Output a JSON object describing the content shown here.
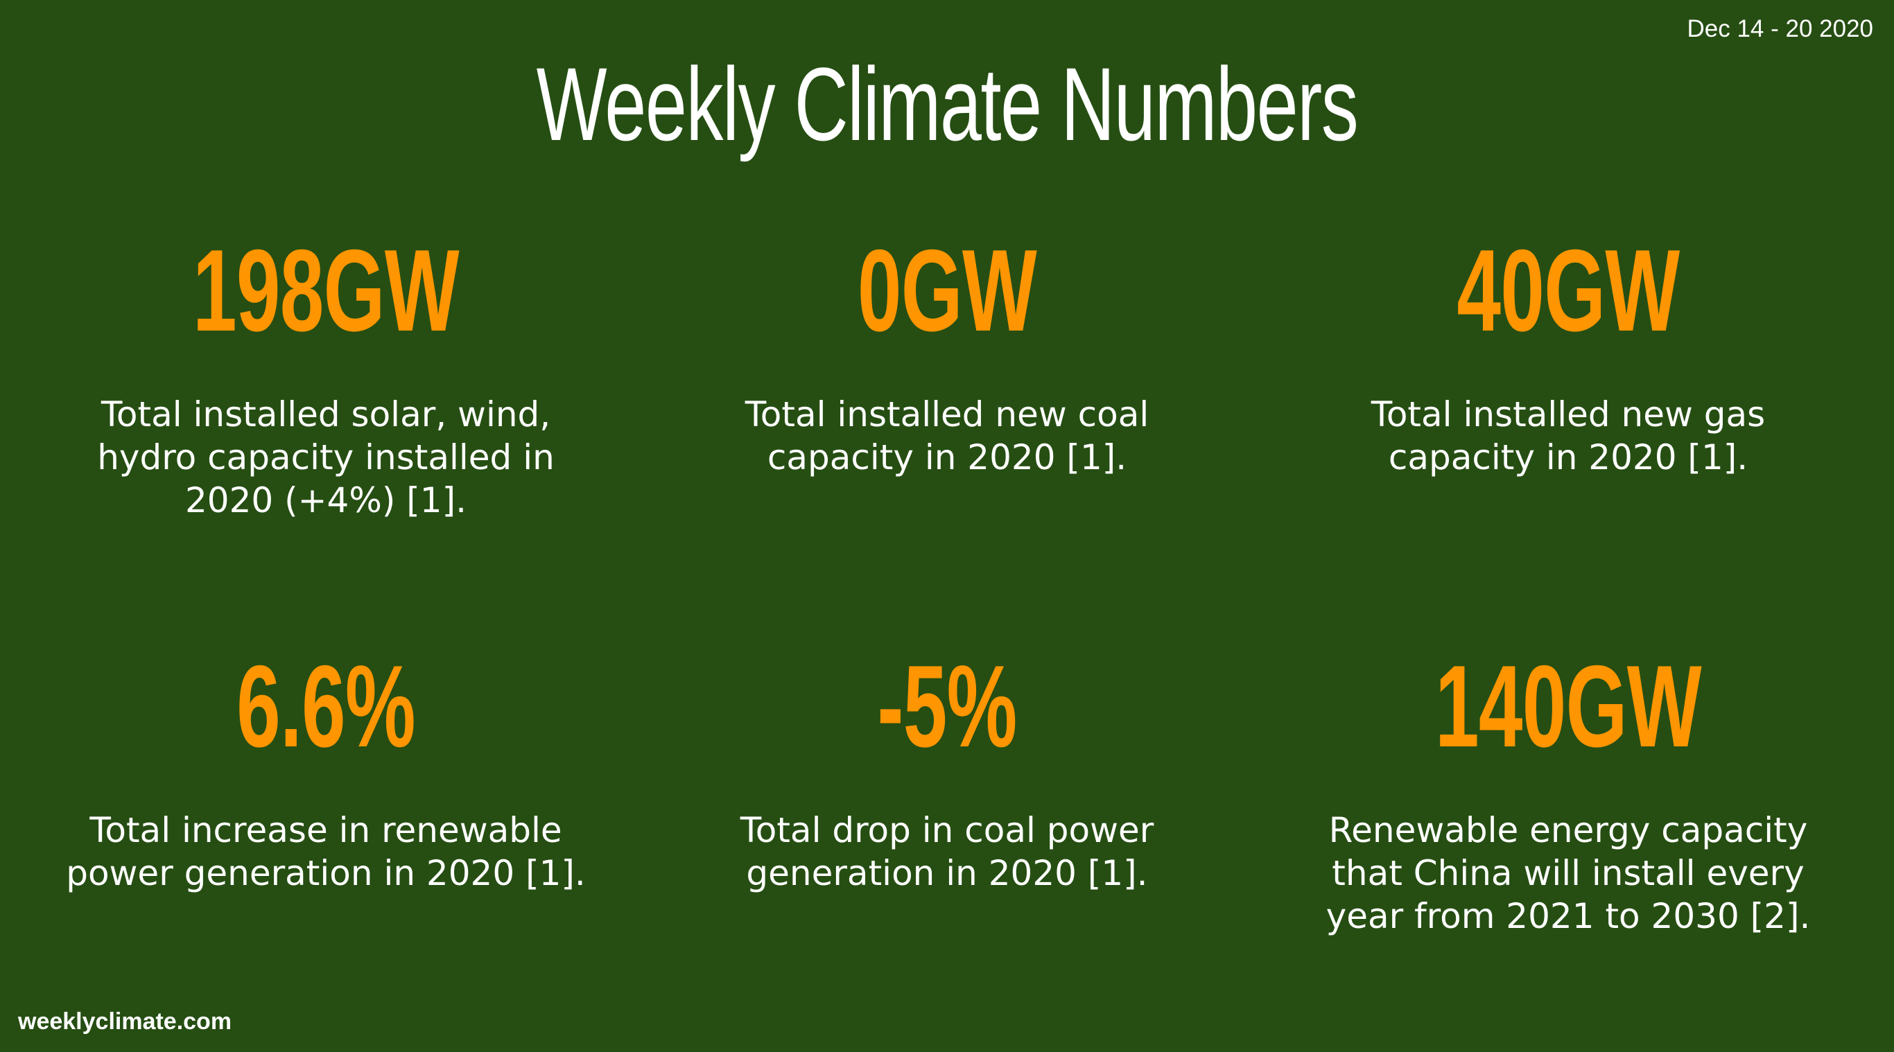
{
  "header": {
    "date_range": "Dec 14 - 20 2020",
    "title": "Weekly Climate Numbers"
  },
  "stats": [
    {
      "value": "198GW",
      "lines": [
        "Total installed solar, wind,",
        "hydro capacity installed in",
        "2020 (+4%) [1]."
      ]
    },
    {
      "value": "0GW",
      "lines": [
        "Total installed new coal",
        "capacity in 2020 [1]."
      ]
    },
    {
      "value": "40GW",
      "lines": [
        "Total installed new gas",
        "capacity in 2020 [1]."
      ]
    },
    {
      "value": "6.6%",
      "lines": [
        "Total increase in renewable",
        "power generation in 2020 [1]."
      ]
    },
    {
      "value": "-5%",
      "lines": [
        "Total drop in coal power",
        "generation in 2020 [1]."
      ]
    },
    {
      "value": "140GW",
      "lines": [
        "Renewable energy capacity",
        "that China will install every",
        "year from 2021 to 2030 [2]."
      ]
    }
  ],
  "footer": {
    "site": "weeklyclimate.com"
  },
  "colors": {
    "background": "#264e13",
    "accent": "#ff9500",
    "text": "#ffffff"
  }
}
